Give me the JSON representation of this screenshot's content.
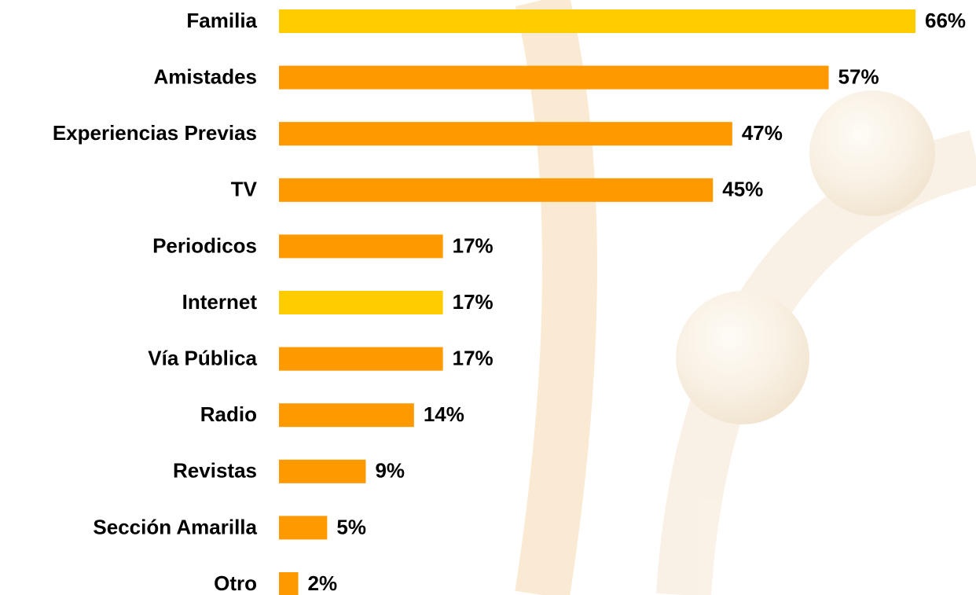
{
  "chart_data": {
    "type": "bar",
    "categories": [
      "Familia",
      "Amistades",
      "Experiencias Previas",
      "TV",
      "Periodicos",
      "Internet",
      "Vía Pública",
      "Radio",
      "Revistas",
      "Sección Amarilla",
      "Otro"
    ],
    "values": [
      66,
      57,
      47,
      45,
      17,
      17,
      17,
      14,
      9,
      5,
      2
    ],
    "value_labels": [
      "66%",
      "57%",
      "47%",
      "45%",
      "17%",
      "17%",
      "17%",
      "14%",
      "9%",
      "5%",
      "2%"
    ],
    "colors": [
      "#ffcc00",
      "#ff9900",
      "#ff9900",
      "#ff9900",
      "#ff9900",
      "#ffcc00",
      "#ff9900",
      "#ff9900",
      "#ff9900",
      "#ff9900",
      "#ff9900"
    ]
  }
}
